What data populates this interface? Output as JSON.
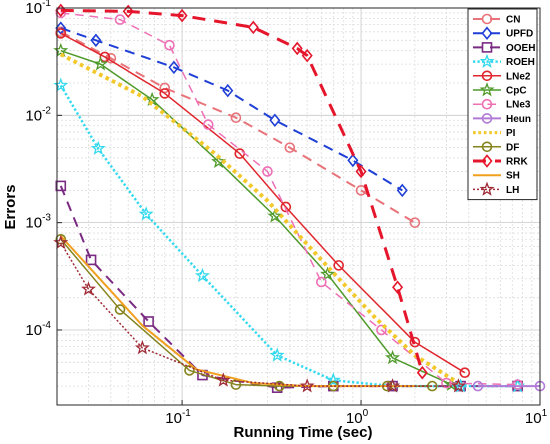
{
  "chart_data": {
    "type": "line",
    "title": "",
    "xlabel": "Running Time (sec)",
    "ylabel": "Errors",
    "xscale": "log",
    "yscale": "log",
    "xlim": [
      0.02,
      10
    ],
    "ylim": [
      2e-05,
      0.1
    ],
    "grid": true,
    "legend_position": "top-right",
    "xticks": [
      {
        "base": "10",
        "exp": "-1",
        "value": 0.1
      },
      {
        "base": "10",
        "exp": "0",
        "value": 1
      },
      {
        "base": "10",
        "exp": "1",
        "value": 10
      }
    ],
    "yticks": [
      {
        "base": "10",
        "exp": "-4",
        "value": 0.0001
      },
      {
        "base": "10",
        "exp": "-3",
        "value": 0.001
      },
      {
        "base": "10",
        "exp": "-2",
        "value": 0.01
      },
      {
        "base": "10",
        "exp": "-1",
        "value": 0.1
      }
    ],
    "series": [
      {
        "name": "CN",
        "color": "#e8737a",
        "style": "dashed",
        "marker": "circle",
        "width": 2,
        "x": [
          0.021,
          0.04,
          0.08,
          0.2,
          0.4,
          1.0,
          2.0
        ],
        "y": [
          0.06,
          0.034,
          0.018,
          0.0095,
          0.005,
          0.002,
          0.001
        ]
      },
      {
        "name": "UPFD",
        "color": "#1f3fd6",
        "style": "dashed",
        "marker": "diamond",
        "width": 2,
        "x": [
          0.021,
          0.033,
          0.09,
          0.18,
          0.33,
          0.9,
          1.7
        ],
        "y": [
          0.065,
          0.05,
          0.028,
          0.017,
          0.009,
          0.0038,
          0.002
        ]
      },
      {
        "name": "OOEH",
        "color": "#7a2a82",
        "style": "dashed",
        "marker": "square",
        "width": 2,
        "x": [
          0.021,
          0.031,
          0.065,
          0.13,
          0.34,
          0.7,
          1.5,
          3.6,
          7.5
        ],
        "y": [
          0.0022,
          0.00045,
          0.00012,
          3.8e-05,
          2.9e-05,
          3e-05,
          3e-05,
          3e-05,
          3e-05
        ]
      },
      {
        "name": "ROEH",
        "color": "#33d9ee",
        "style": "dotted",
        "marker": "star",
        "width": 2.5,
        "x": [
          0.021,
          0.034,
          0.063,
          0.13,
          0.34,
          0.7,
          1.5,
          3.6,
          7.5
        ],
        "y": [
          0.019,
          0.0049,
          0.0012,
          0.00032,
          5.8e-05,
          3.4e-05,
          3e-05,
          3e-05,
          3e-05
        ]
      },
      {
        "name": "LNe2",
        "color": "#e0262d",
        "style": "solid",
        "marker": "circle",
        "width": 1.5,
        "x": [
          0.021,
          0.037,
          0.08,
          0.21,
          0.38,
          0.75,
          2.0,
          3.8
        ],
        "y": [
          0.058,
          0.035,
          0.016,
          0.0044,
          0.0014,
          0.0004,
          7.7e-05,
          4e-05
        ]
      },
      {
        "name": "CpC",
        "color": "#4f9a2a",
        "style": "solid",
        "marker": "star",
        "width": 1.5,
        "x": [
          0.021,
          0.035,
          0.068,
          0.16,
          0.33,
          0.65,
          1.5,
          3.2
        ],
        "y": [
          0.04,
          0.03,
          0.014,
          0.0037,
          0.00115,
          0.00033,
          5.5e-05,
          3.1e-05
        ]
      },
      {
        "name": "LNe3",
        "color": "#ee6fb6",
        "style": "dashed",
        "marker": "circle",
        "width": 1.5,
        "x": [
          0.021,
          0.045,
          0.085,
          0.14,
          0.3,
          0.6,
          1.3,
          3.0,
          7.5
        ],
        "y": [
          0.09,
          0.078,
          0.045,
          0.0082,
          0.003,
          0.00028,
          0.0001,
          3.2e-05,
          3.1e-05
        ]
      },
      {
        "name": "Heun",
        "color": "#b07ad6",
        "style": "solid",
        "marker": "circle",
        "width": 2,
        "x": [
          4.5,
          10
        ],
        "y": [
          3e-05,
          3e-05
        ]
      },
      {
        "name": "PI",
        "color": "#f2c82a",
        "style": "dotted",
        "marker": "none",
        "width": 4,
        "x": [
          0.021,
          0.06,
          0.15,
          0.3,
          0.6,
          1.2,
          2.0,
          3.5
        ],
        "y": [
          0.037,
          0.015,
          0.0045,
          0.0016,
          0.00045,
          0.00013,
          5.8e-05,
          3.2e-05
        ]
      },
      {
        "name": "DF",
        "color": "#86841e",
        "style": "solid",
        "marker": "circle",
        "width": 1.5,
        "x": [
          0.021,
          0.045,
          0.11,
          0.2,
          0.35,
          0.7,
          1.4,
          2.5
        ],
        "y": [
          0.0007,
          0.000155,
          4.2e-05,
          3.1e-05,
          3e-05,
          3e-05,
          3e-05,
          3e-05
        ]
      },
      {
        "name": "RRK",
        "color": "#e5152b",
        "style": "dashed",
        "marker": "diamond",
        "width": 3,
        "x": [
          0.021,
          0.05,
          0.1,
          0.25,
          0.44,
          0.5,
          1.0,
          1.6,
          2.2
        ],
        "y": [
          0.095,
          0.093,
          0.085,
          0.066,
          0.042,
          0.036,
          0.003,
          0.00025,
          4e-05
        ]
      },
      {
        "name": "SH",
        "color": "#f0a01e",
        "style": "solid",
        "marker": "none",
        "width": 2,
        "x": [
          0.021,
          0.06,
          0.12,
          0.25,
          0.5,
          1.0,
          2.0
        ],
        "y": [
          0.00075,
          0.00011,
          4.3e-05,
          3.2e-05,
          3e-05,
          3e-05,
          3e-05
        ]
      },
      {
        "name": "LH",
        "color": "#a02a35",
        "style": "dotted",
        "marker": "star",
        "width": 1.5,
        "x": [
          0.021,
          0.03,
          0.06,
          0.17,
          0.5,
          1.5,
          3.5
        ],
        "y": [
          0.00065,
          0.00024,
          6.8e-05,
          3.4e-05,
          3e-05,
          3e-05,
          3e-05
        ]
      }
    ]
  }
}
